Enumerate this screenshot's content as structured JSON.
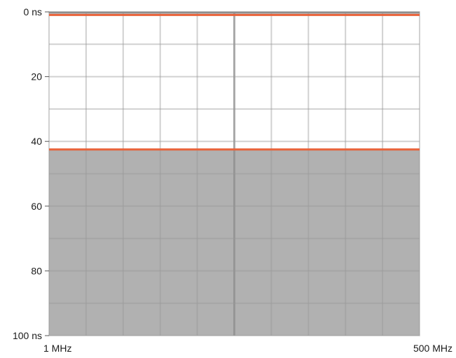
{
  "chart_data": {
    "type": "area",
    "title": "",
    "xlabel": "",
    "ylabel": "",
    "x_scale": "log",
    "xlim": [
      "1 MHz",
      "500 MHz"
    ],
    "ylim": [
      0,
      100
    ],
    "y_inverted": true,
    "y_ticks": [
      0,
      20,
      40,
      60,
      80,
      100
    ],
    "y_tick_labels": [
      "0 ns",
      "20",
      "40",
      "60",
      "80",
      "100 ns"
    ],
    "x_tick_labels": [
      "1 MHz",
      "500 MHz"
    ],
    "grid": true,
    "reference_lines": [
      {
        "y": 0.5,
        "color": "#e8623a"
      },
      {
        "y": 42.5,
        "color": "#e8623a"
      }
    ],
    "shaded_region": {
      "y_from": 42.5,
      "y_to": 100,
      "color": "#b1b1b1"
    },
    "colors": {
      "grid": "#c9c9c9",
      "grid_dark": "#8e8e8e",
      "limit_line": "#e8623a",
      "shade": "#b1b1b1"
    }
  }
}
